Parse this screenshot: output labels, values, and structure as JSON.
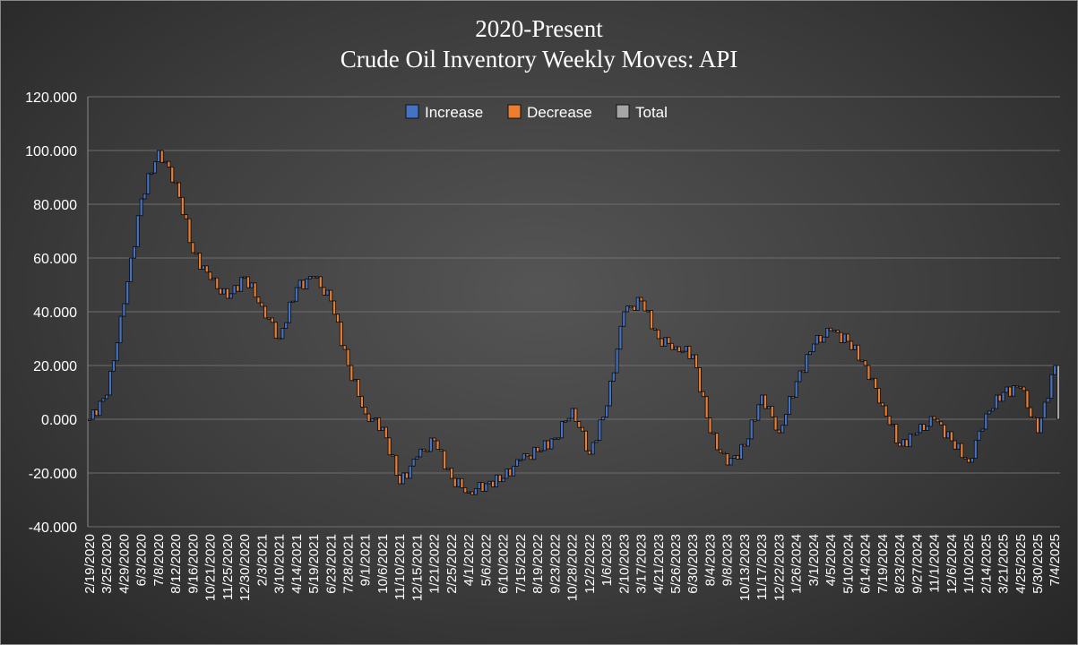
{
  "chart_data": {
    "type": "waterfall",
    "title": "2020-Present",
    "subtitle": "Crude Oil Inventory Weekly Moves:  API",
    "xlabel": "",
    "ylabel": "",
    "ylim": [
      -40,
      120
    ],
    "yticks": [
      "120.000",
      "100.000",
      "80.000",
      "60.000",
      "40.000",
      "20.000",
      "0.000",
      "-20.000",
      "-40.000"
    ],
    "xtick_labels": [
      "2/19/2020",
      "3/25/2020",
      "4/29/2020",
      "6/3/2020",
      "7/8/2020",
      "8/12/2020",
      "9/16/2020",
      "10/21/2020",
      "11/25/2020",
      "12/30/2020",
      "2/3/2021",
      "3/10/2021",
      "4/14/2021",
      "5/19/2021",
      "6/23/2021",
      "7/28/2021",
      "9/1/2021",
      "10/6/2021",
      "11/10/2021",
      "12/15/2021",
      "1/21/2022",
      "2/25/2022",
      "4/1/2022",
      "5/6/2022",
      "6/10/2022",
      "7/15/2022",
      "8/19/2022",
      "9/23/2022",
      "10/28/2022",
      "12/2/2022",
      "1/6/2023",
      "2/10/2023",
      "3/17/2023",
      "4/21/2023",
      "5/26/2023",
      "6/30/2023",
      "8/4/2023",
      "9/8/2023",
      "10/13/2023",
      "11/17/2023",
      "12/22/2023",
      "1/26/2024",
      "3/1/2024",
      "4/5/2024",
      "5/10/2024",
      "6/14/2024",
      "7/19/2024",
      "8/23/2024",
      "9/27/2024",
      "11/1/2024",
      "12/6/2024",
      "1/10/2025",
      "2/14/2025",
      "3/21/2025",
      "4/25/2025",
      "5/30/2025",
      "7/4/2025"
    ],
    "legend": [
      "Increase",
      "Decrease",
      "Total"
    ],
    "legend_position": "top-center",
    "grid": true,
    "colors": {
      "increase": "#4472c4",
      "decrease": "#ed7d31",
      "total": "#a5a5a5"
    },
    "cumulative_at_ticks": [
      0,
      9,
      43,
      82,
      100,
      88,
      62,
      52,
      45,
      53,
      42,
      30,
      49,
      53,
      44,
      20,
      2,
      -3,
      -24,
      -14,
      -8,
      -22,
      -27,
      -24,
      -22,
      -15,
      -12,
      -7,
      4,
      -13,
      5,
      40,
      44,
      30,
      27,
      24,
      -5,
      -17,
      -10,
      9,
      -5,
      14,
      28,
      33,
      29,
      20,
      5,
      -10,
      -5,
      0,
      -8,
      -16,
      2,
      10,
      12,
      -5,
      20
    ],
    "total_final": 20
  }
}
